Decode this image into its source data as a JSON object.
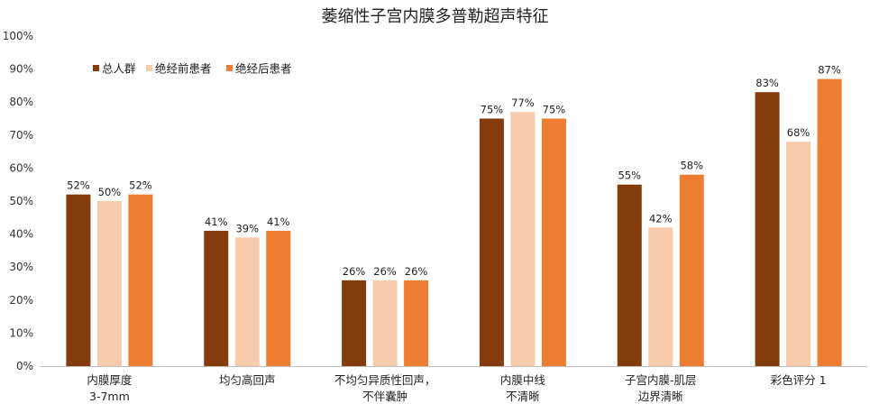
{
  "chart_data": {
    "type": "bar",
    "title": "萎缩性子宫内膜多普勒超声特征",
    "xlabel": "",
    "ylabel": "",
    "ylim": [
      0,
      100
    ],
    "ytick_labels": [
      "0%",
      "10%",
      "20%",
      "30%",
      "40%",
      "50%",
      "60%",
      "70%",
      "80%",
      "90%",
      "100%"
    ],
    "categories": [
      [
        "内膜厚度",
        "3-7mm"
      ],
      [
        "均匀高回声"
      ],
      [
        "不均匀异质性回声，",
        "不伴囊肿"
      ],
      [
        "内膜中线",
        "不清晰"
      ],
      [
        "子宫内膜-肌层",
        "边界清晰"
      ],
      [
        "彩色评分 1"
      ]
    ],
    "series": [
      {
        "name": "总人群",
        "color": "#843C0C",
        "values": [
          52,
          41,
          26,
          75,
          55,
          83
        ]
      },
      {
        "name": "绝经前患者",
        "color": "#F8CBAD",
        "values": [
          50,
          39,
          26,
          77,
          42,
          68
        ]
      },
      {
        "name": "绝经后患者",
        "color": "#ED7D31",
        "values": [
          52,
          41,
          26,
          75,
          58,
          87
        ]
      }
    ],
    "value_suffix": "%",
    "grid": false,
    "legend": "top-left"
  }
}
